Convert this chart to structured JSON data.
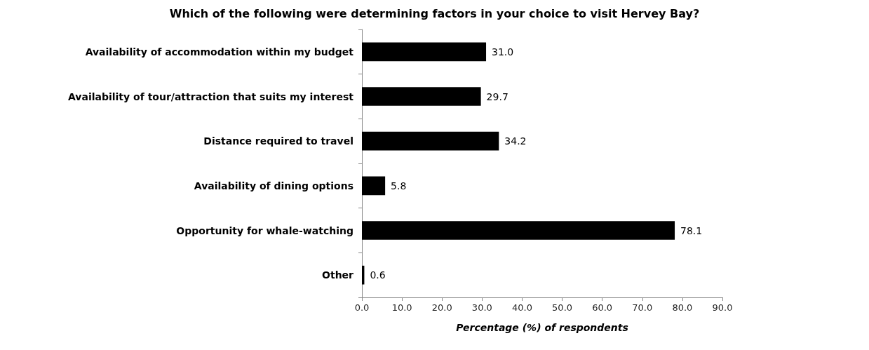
{
  "chart_data": {
    "type": "bar",
    "orientation": "horizontal",
    "title": "Which of the following were determining factors in your choice to visit Hervey Bay?",
    "xlabel": "Percentage (%) of respondents",
    "categories": [
      "Availability of accommodation within my budget",
      "Availability of tour/attraction that suits my interest",
      "Distance required to travel",
      "Availability of dining options",
      "Opportunity for whale-watching",
      "Other"
    ],
    "values": [
      31.0,
      29.7,
      34.2,
      5.8,
      78.1,
      0.6
    ],
    "value_labels": [
      "31.0",
      "29.7",
      "34.2",
      "5.8",
      "78.1",
      "0.6"
    ],
    "color": "#000000",
    "xlim": [
      0,
      90
    ],
    "xticks": [
      {
        "value": 0,
        "label": "0.0"
      },
      {
        "value": 10,
        "label": "10.0"
      },
      {
        "value": 20,
        "label": "20.0"
      },
      {
        "value": 30,
        "label": "30.0"
      },
      {
        "value": 40,
        "label": "40.0"
      },
      {
        "value": 50,
        "label": "50.0"
      },
      {
        "value": 60,
        "label": "60.0"
      },
      {
        "value": 70,
        "label": "70.0"
      },
      {
        "value": 80,
        "label": "80.0"
      },
      {
        "value": 90,
        "label": "90.0"
      }
    ],
    "grid": false
  }
}
